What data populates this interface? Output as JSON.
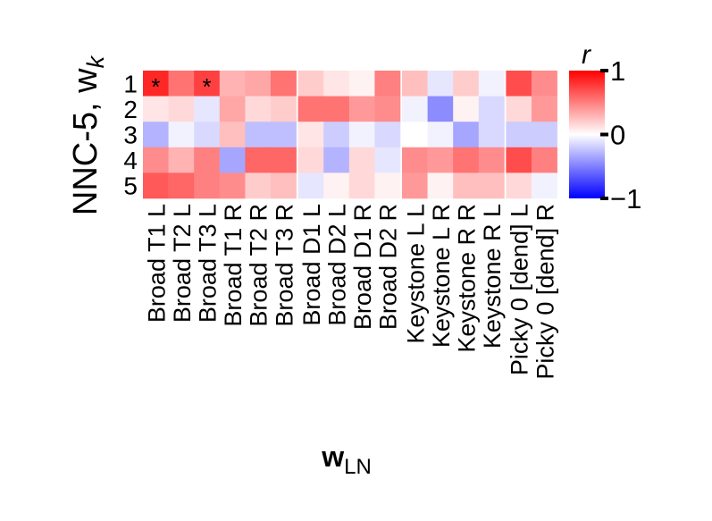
{
  "chart_data": {
    "type": "heatmap",
    "ylabel": "NNC-5, w",
    "ylabel_sub": "k",
    "xlabel": "w",
    "xlabel_sub": "LN",
    "rows": [
      "1",
      "2",
      "3",
      "4",
      "5"
    ],
    "columns": [
      "Broad T1 L",
      "Broad T2 L",
      "Broad T3 L",
      "Broad T1 R",
      "Broad T2 R",
      "Broad T3 R",
      "Broad D1 L",
      "Broad D2 L",
      "Broad D1 R",
      "Broad D2 R",
      "Keystone L L",
      "Keystone L R",
      "Keystone R R",
      "Keystone R L",
      "Picky 0 [dend] L",
      "Picky 0 [dend] R"
    ],
    "groups": [
      [
        0,
        5
      ],
      [
        6,
        9
      ],
      [
        10,
        13
      ],
      [
        14,
        15
      ]
    ],
    "values": [
      [
        0.85,
        0.55,
        0.75,
        0.3,
        0.35,
        0.55,
        0.2,
        0.1,
        0.05,
        0.5,
        0.25,
        -0.1,
        0.2,
        -0.05,
        0.7,
        0.45
      ],
      [
        0.1,
        0.15,
        -0.1,
        0.35,
        0.15,
        0.2,
        0.55,
        0.55,
        0.4,
        0.45,
        -0.05,
        -0.45,
        0.05,
        -0.15,
        0.15,
        0.4
      ],
      [
        -0.3,
        -0.05,
        -0.15,
        0.25,
        -0.25,
        -0.25,
        0.1,
        -0.2,
        -0.05,
        -0.15,
        0.0,
        -0.05,
        -0.35,
        -0.15,
        -0.2,
        -0.2
      ],
      [
        0.45,
        0.3,
        0.5,
        -0.35,
        0.6,
        0.6,
        0.15,
        -0.3,
        0.15,
        -0.1,
        0.45,
        0.4,
        0.55,
        0.45,
        0.7,
        0.5
      ],
      [
        0.65,
        0.6,
        0.5,
        0.45,
        0.2,
        0.25,
        -0.1,
        0.05,
        0.15,
        0.05,
        0.4,
        0.05,
        0.25,
        0.25,
        0.15,
        -0.05
      ]
    ],
    "annotations": [
      {
        "row": 0,
        "col": 0,
        "text": "*"
      },
      {
        "row": 0,
        "col": 2,
        "text": "*"
      }
    ],
    "colorbar": {
      "label": "r",
      "min": -1,
      "max": 1,
      "ticks": [
        1,
        0,
        -1
      ],
      "tick_labels": [
        "1",
        "0",
        "−1"
      ],
      "colormap": "bwr",
      "color_low": "#0000ff",
      "color_mid": "#ffffff",
      "color_high": "#ff0000"
    }
  }
}
